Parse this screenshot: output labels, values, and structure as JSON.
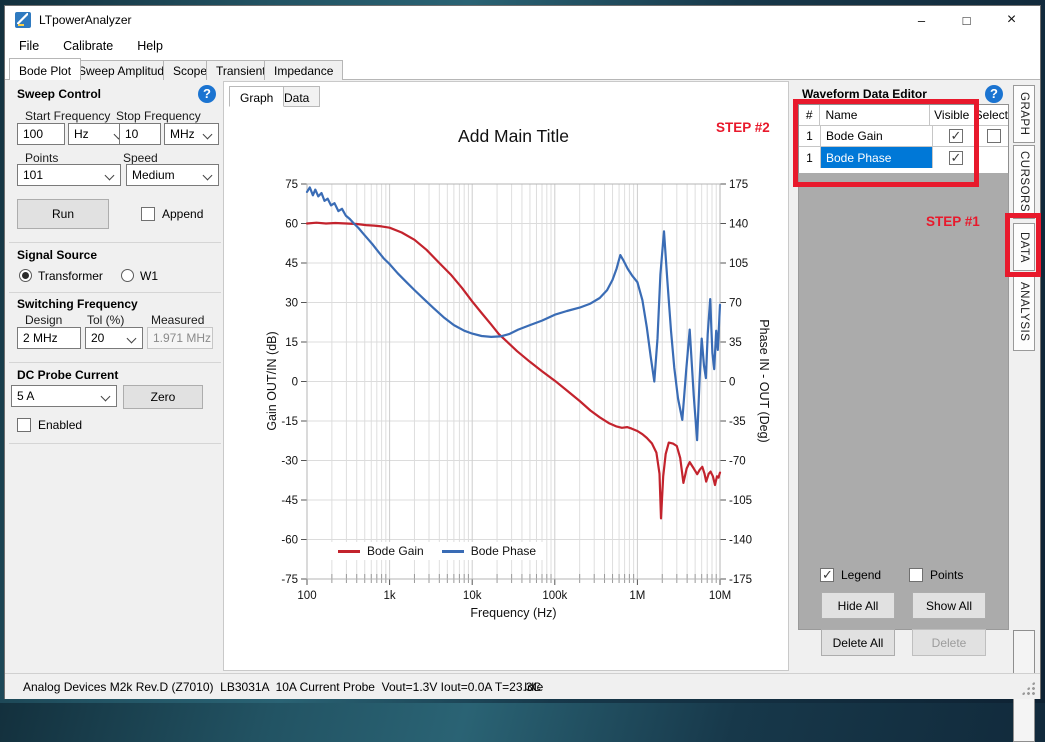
{
  "window": {
    "title": "LTpowerAnalyzer",
    "controls": {
      "minimize": "–",
      "maximize": "□",
      "close": "×"
    }
  },
  "menu": {
    "items": [
      "File",
      "Calibrate",
      "Help"
    ]
  },
  "main_tabs": {
    "items": [
      "Bode Plot",
      "Sweep Amplitude",
      "Scope",
      "Transient",
      "Impedance"
    ],
    "active": "Bode Plot"
  },
  "sweep_control": {
    "title": "Sweep Control",
    "start_frequency_label": "Start Frequency",
    "start_frequency_value": "100",
    "start_frequency_unit": "Hz",
    "stop_frequency_label": "Stop Frequency",
    "stop_frequency_value": "10",
    "stop_frequency_unit": "MHz",
    "points_label": "Points",
    "points_value": "101",
    "speed_label": "Speed",
    "speed_value": "Medium",
    "run_label": "Run",
    "append_label": "Append",
    "append_checked": false
  },
  "signal_source": {
    "title": "Signal Source",
    "option1": "Transformer",
    "option2": "W1",
    "selected": "Transformer"
  },
  "switching_frequency": {
    "title": "Switching Frequency",
    "design_label": "Design",
    "design_value": "2 MHz",
    "tol_label": "Tol (%)",
    "tol_value": "20",
    "measured_label": "Measured",
    "measured_value": "1.971 MHz"
  },
  "dc_probe": {
    "title": "DC Probe Current",
    "current_value": "5 A",
    "zero_label": "Zero",
    "enabled_label": "Enabled",
    "enabled_checked": false
  },
  "plot_tabs": {
    "graph": "Graph",
    "data": "Data",
    "active": "Graph"
  },
  "waveform_editor": {
    "title": "Waveform Data Editor",
    "columns": [
      "#",
      "Name",
      "Visible",
      "Select"
    ],
    "rows": [
      {
        "num": "1",
        "name": "Bode Gain",
        "visible": true,
        "select_checked": false,
        "highlighted": false
      },
      {
        "num": "1",
        "name": "Bode Phase",
        "visible": true,
        "highlighted": true
      }
    ],
    "legend_label": "Legend",
    "legend_checked": true,
    "points_label": "Points",
    "points_checked": false,
    "buttons": {
      "hide_all": "Hide All",
      "show_all": "Show All",
      "delete_all": "Delete All",
      "delete": "Delete"
    }
  },
  "side_tabs": {
    "items": [
      "GRAPH",
      "CURSORS",
      "DATA",
      "ANALYSIS"
    ]
  },
  "annotations": {
    "step1": "STEP #1",
    "step2": "STEP #2",
    "color": "#e8192c"
  },
  "status_bar": {
    "device_info": "Analog Devices M2k Rev.D (Z7010)  LB3031A  10A Current Probe  Vout=1.3V Iout=0.0A T=23.3C",
    "state": "Idle"
  },
  "help_glyph": "?",
  "chart_data": {
    "type": "line",
    "title": "Add Main Title",
    "xlabel": "Frequency (Hz)",
    "ylabel_left": "Gain OUT/IN (dB)",
    "ylabel_right": "Phase IN - OUT (Deg)",
    "x_scale": "log",
    "xlim": [
      100,
      10000000
    ],
    "x_tick_values": [
      100,
      1000,
      10000,
      100000,
      1000000,
      10000000
    ],
    "x_tick_labels": [
      "100",
      "1k",
      "10k",
      "100k",
      "1M",
      "10M"
    ],
    "ylim_left": [
      -75,
      75
    ],
    "left_ticks": [
      75,
      60,
      45,
      30,
      15,
      0,
      -15,
      -30,
      -45,
      -60,
      -75
    ],
    "ylim_right": [
      -175,
      175
    ],
    "right_ticks": [
      175,
      140,
      105,
      70,
      35,
      0,
      -35,
      -70,
      -105,
      -140,
      -175
    ],
    "grid": true,
    "legend_position": "inside-bottom-left",
    "series": [
      {
        "name": "Bode Gain",
        "axis": "left",
        "color": "#c3232d",
        "x": [
          100,
          130,
          170,
          220,
          300,
          400,
          520,
          650,
          800,
          1000,
          1400,
          2000,
          2800,
          4000,
          5500,
          7500,
          10000,
          13000,
          17000,
          21000,
          26000,
          35000,
          50000,
          70000,
          100000,
          140000,
          200000,
          270000,
          350000,
          450000,
          550000,
          650000,
          750000,
          850000,
          1000000,
          1150000,
          1300000,
          1500000,
          1700000,
          1850000,
          1930000,
          2050000,
          2200000,
          2400000,
          2700000,
          3000000,
          3300000,
          3600000,
          3950000,
          4300000,
          4800000,
          5300000,
          5700000,
          6100000,
          6500000,
          6800000,
          7300000,
          7700000,
          8200000,
          8700000,
          9200000,
          9600000,
          10000000
        ],
        "y": [
          60,
          60.3,
          60,
          60.2,
          60,
          59.8,
          59.4,
          59.2,
          58.9,
          58.4,
          56.6,
          53.8,
          50,
          45,
          40.6,
          35.6,
          30.4,
          26,
          21.6,
          18,
          15.3,
          11.5,
          7.5,
          3.9,
          0.3,
          -3.4,
          -7.4,
          -11,
          -13.6,
          -15.8,
          -17,
          -17.6,
          -17.3,
          -17.9,
          -18.8,
          -20,
          -21.4,
          -23.5,
          -27,
          -35,
          -52,
          -36,
          -27.5,
          -23.2,
          -23.6,
          -24.5,
          -29,
          -38.5,
          -33,
          -30.6,
          -33,
          -35.2,
          -33.5,
          -32.4,
          -35,
          -38,
          -35,
          -34.2,
          -36,
          -39.3,
          -36,
          -36.5,
          -34.6
        ]
      },
      {
        "name": "Bode Phase",
        "axis": "right",
        "color": "#3a6cb5",
        "x": [
          100,
          108,
          118,
          126,
          137,
          150,
          163,
          178,
          195,
          215,
          240,
          265,
          295,
          330,
          370,
          420,
          480,
          550,
          630,
          730,
          850,
          1000,
          1250,
          1600,
          2000,
          2600,
          3400,
          4500,
          6000,
          8000,
          10000,
          13000,
          17000,
          22000,
          28000,
          36000,
          50000,
          70000,
          100000,
          140000,
          200000,
          270000,
          350000,
          430000,
          500000,
          560000,
          620000,
          680000,
          760000,
          860000,
          1000000,
          1150000,
          1300000,
          1450000,
          1600000,
          1750000,
          1900000,
          2100000,
          2300000,
          2550000,
          2800000,
          3100000,
          3500000,
          3900000,
          4300000,
          4800000,
          5280000,
          5650000,
          6000000,
          6400000,
          6750000,
          7100000,
          7600000,
          8100000,
          8500000,
          9000000,
          9400000,
          10000000
        ],
        "y": [
          168,
          172,
          165,
          170,
          164,
          167,
          160,
          162,
          156,
          158,
          151,
          153,
          147,
          144,
          140,
          136,
          131,
          126,
          121,
          115,
          109,
          104,
          96,
          88,
          81,
          73,
          65,
          57,
          50,
          45,
          42.4,
          40.3,
          39.5,
          40,
          42,
          46,
          50,
          54,
          59.2,
          62.5,
          65.5,
          69,
          74,
          81,
          90,
          100,
          112,
          107,
          100,
          94,
          88,
          72,
          48,
          22,
          0,
          38,
          95,
          133,
          90,
          45,
          12,
          -15,
          -34,
          10,
          46,
          -12,
          -52,
          0,
          38,
          14,
          3,
          42,
          73,
          25,
          11,
          45,
          28,
          68
        ]
      }
    ]
  }
}
